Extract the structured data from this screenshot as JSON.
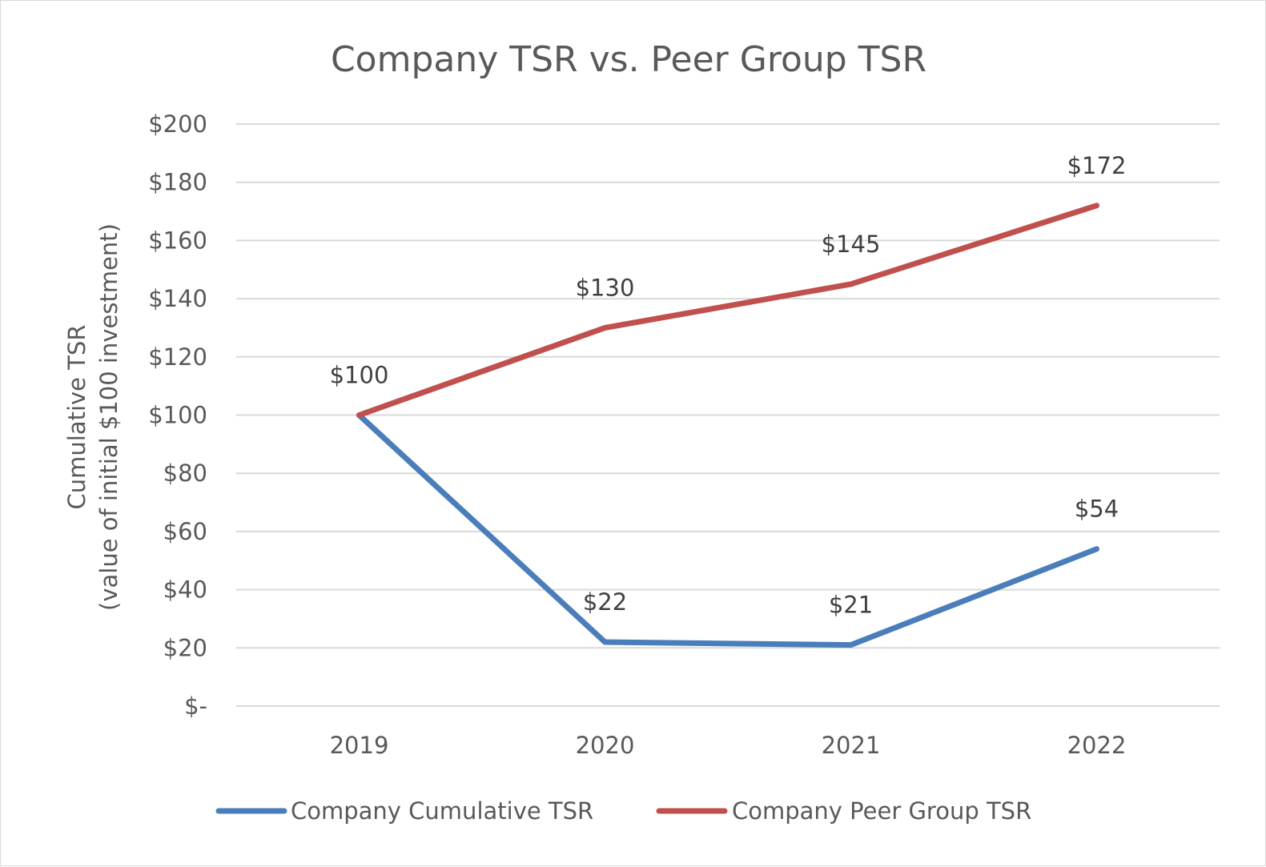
{
  "chart_data": {
    "type": "line",
    "title": "Company TSR vs. Peer Group TSR",
    "xlabel": "",
    "ylabel_lines": [
      "Cumulative TSR",
      "(value of initial $100 investment)"
    ],
    "categories": [
      "2019",
      "2020",
      "2021",
      "2022"
    ],
    "ylim": [
      0,
      200
    ],
    "y_tick_values": [
      0,
      20,
      40,
      60,
      80,
      100,
      120,
      140,
      160,
      180,
      200
    ],
    "y_tick_labels": [
      "$-",
      "$20",
      "$40",
      "$60",
      "$80",
      "$100",
      "$120",
      "$140",
      "$160",
      "$180",
      "$200"
    ],
    "grid": true,
    "legend_position": "bottom",
    "series": [
      {
        "name": "Company Cumulative TSR",
        "color": "#4a7ebb",
        "values": [
          100,
          22,
          21,
          54
        ],
        "data_labels": [
          "",
          "$22",
          "$21",
          "$54"
        ]
      },
      {
        "name": "Company Peer Group TSR",
        "color": "#c0504d",
        "values": [
          100,
          130,
          145,
          172
        ],
        "data_labels": [
          "$100",
          "$130",
          "$145",
          "$172"
        ]
      }
    ]
  }
}
